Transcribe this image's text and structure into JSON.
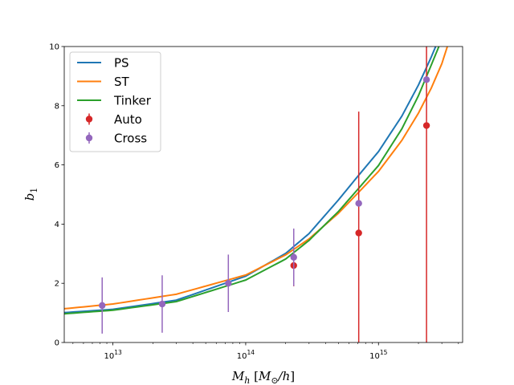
{
  "chart_data": {
    "type": "line",
    "xscale": "log",
    "xlim": [
      4300000000000.0,
      4300000000000000.0
    ],
    "ylim": [
      0,
      10
    ],
    "xlabel": "M_h [M_⊙/h]",
    "ylabel": "b_1",
    "xticks": [
      {
        "value": 10000000000000.0,
        "mantissa": "10",
        "exp": "13"
      },
      {
        "value": 100000000000000.0,
        "mantissa": "10",
        "exp": "14"
      },
      {
        "value": 1000000000000000.0,
        "mantissa": "10",
        "exp": "15"
      }
    ],
    "yticks": [
      0,
      2,
      4,
      6,
      8,
      10
    ],
    "legend_position": "top-left",
    "grid": false,
    "series": [
      {
        "name": "PS",
        "kind": "line",
        "color": "#1f77b4",
        "x": [
          4300000000000.0,
          10000000000000.0,
          30000000000000.0,
          100000000000000.0,
          200000000000000.0,
          300000000000000.0,
          500000000000000.0,
          700000000000000.0,
          1000000000000000.0,
          1500000000000000.0,
          2000000000000000.0,
          2500000000000000.0,
          3000000000000000.0
        ],
        "y": [
          1.01,
          1.12,
          1.43,
          2.24,
          3.01,
          3.68,
          4.82,
          5.62,
          6.45,
          7.65,
          8.7,
          9.65,
          10.5
        ]
      },
      {
        "name": "ST",
        "kind": "line",
        "color": "#ff7f0e",
        "x": [
          4300000000000.0,
          10000000000000.0,
          30000000000000.0,
          100000000000000.0,
          200000000000000.0,
          300000000000000.0,
          500000000000000.0,
          700000000000000.0,
          1000000000000000.0,
          1500000000000000.0,
          2000000000000000.0,
          2500000000000000.0,
          3000000000000000.0,
          3300000000000000.0
        ],
        "y": [
          1.14,
          1.3,
          1.63,
          2.28,
          2.96,
          3.5,
          4.37,
          5.05,
          5.78,
          6.83,
          7.75,
          8.6,
          9.42,
          10.0
        ]
      },
      {
        "name": "Tinker",
        "kind": "line",
        "color": "#2ca02c",
        "x": [
          4300000000000.0,
          10000000000000.0,
          30000000000000.0,
          100000000000000.0,
          200000000000000.0,
          300000000000000.0,
          500000000000000.0,
          700000000000000.0,
          1000000000000000.0,
          1500000000000000.0,
          2000000000000000.0,
          2500000000000000.0,
          2850000000000000.0
        ],
        "y": [
          0.97,
          1.09,
          1.38,
          2.11,
          2.82,
          3.45,
          4.43,
          5.18,
          5.98,
          7.22,
          8.34,
          9.38,
          10.0
        ]
      },
      {
        "name": "Auto",
        "kind": "errorbar",
        "color": "#d62728",
        "x": [
          230000000000000.0,
          710000000000000.0,
          2300000000000000.0
        ],
        "y": [
          2.6,
          3.7,
          7.33
        ],
        "yerr_low": [
          0.7,
          3.7,
          7.33
        ],
        "yerr_high": [
          0.7,
          4.1,
          2.67
        ]
      },
      {
        "name": "Cross",
        "kind": "errorbar",
        "color": "#9467bd",
        "x": [
          8300000000000.0,
          23500000000000.0,
          74000000000000.0,
          230000000000000.0,
          710000000000000.0,
          2300000000000000.0
        ],
        "y": [
          1.25,
          1.3,
          2.0,
          2.88,
          4.7,
          8.88
        ],
        "yerr_low": [
          0.95,
          0.97,
          0.97,
          0.97,
          0,
          0
        ],
        "yerr_high": [
          0.95,
          0.97,
          0.97,
          0.97,
          0,
          0
        ]
      }
    ]
  }
}
